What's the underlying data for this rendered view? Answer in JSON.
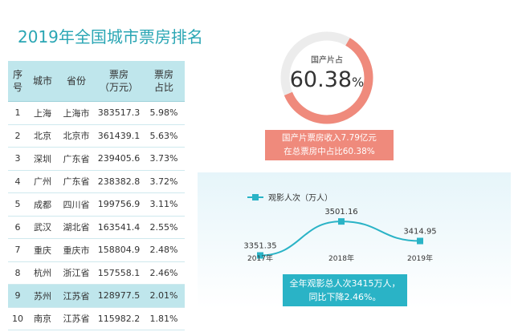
{
  "title": "2019年全国城市票房排名",
  "table": {
    "headers": [
      [
        "序",
        "号"
      ],
      [
        "城市"
      ],
      [
        "省份"
      ],
      [
        "票房",
        "（万元）"
      ],
      [
        "票房",
        "占比"
      ]
    ],
    "rows": [
      {
        "no": "1",
        "city": "上海",
        "province": "上海市",
        "box": "383517.3",
        "share": "5.98%"
      },
      {
        "no": "2",
        "city": "北京",
        "province": "北京市",
        "box": "361439.1",
        "share": "5.63%"
      },
      {
        "no": "3",
        "city": "深圳",
        "province": "广东省",
        "box": "239405.6",
        "share": "3.73%"
      },
      {
        "no": "4",
        "city": "广州",
        "province": "广东省",
        "box": "238382.8",
        "share": "3.72%"
      },
      {
        "no": "5",
        "city": "成都",
        "province": "四川省",
        "box": "199756.9",
        "share": "3.11%"
      },
      {
        "no": "6",
        "city": "武汉",
        "province": "湖北省",
        "box": "163541.4",
        "share": "2.55%"
      },
      {
        "no": "7",
        "city": "重庆",
        "province": "重庆市",
        "box": "158804.9",
        "share": "2.48%"
      },
      {
        "no": "8",
        "city": "杭州",
        "province": "浙江省",
        "box": "157558.1",
        "share": "2.46%"
      },
      {
        "no": "9",
        "city": "苏州",
        "province": "江苏省",
        "box": "128977.5",
        "share": "2.01%"
      },
      {
        "no": "10",
        "city": "南京",
        "province": "江苏省",
        "box": "115982.2",
        "share": "1.81%"
      }
    ],
    "highlight_row": 9
  },
  "colors": {
    "teal": "#2ab3c6",
    "title": "#2aa6b4",
    "header_bg": "#bfe6ec",
    "salmon": "#ef8a7c",
    "donut_track": "#ececec"
  },
  "donut": {
    "label": "国产片占",
    "value": "60.38",
    "unit": "%",
    "fraction": 0.6038
  },
  "box_note": {
    "line1": "国产片票房收入7.79亿元",
    "line2": "在总票房中占比60.38%"
  },
  "viewer_note": {
    "line1": "全年观影总人次3415万人，",
    "line2": "同比下降2.46%。"
  },
  "chart_data": {
    "type": "line",
    "legend": "观影人次（万人）",
    "legend_position": "top-left",
    "categories": [
      "2017年",
      "2018年",
      "2019年"
    ],
    "values": [
      3351.35,
      3501.16,
      3414.95
    ],
    "labels": [
      "3351.35",
      "3501.16",
      "3414.95"
    ],
    "ylim": [
      3300,
      3530
    ],
    "grid": false
  }
}
